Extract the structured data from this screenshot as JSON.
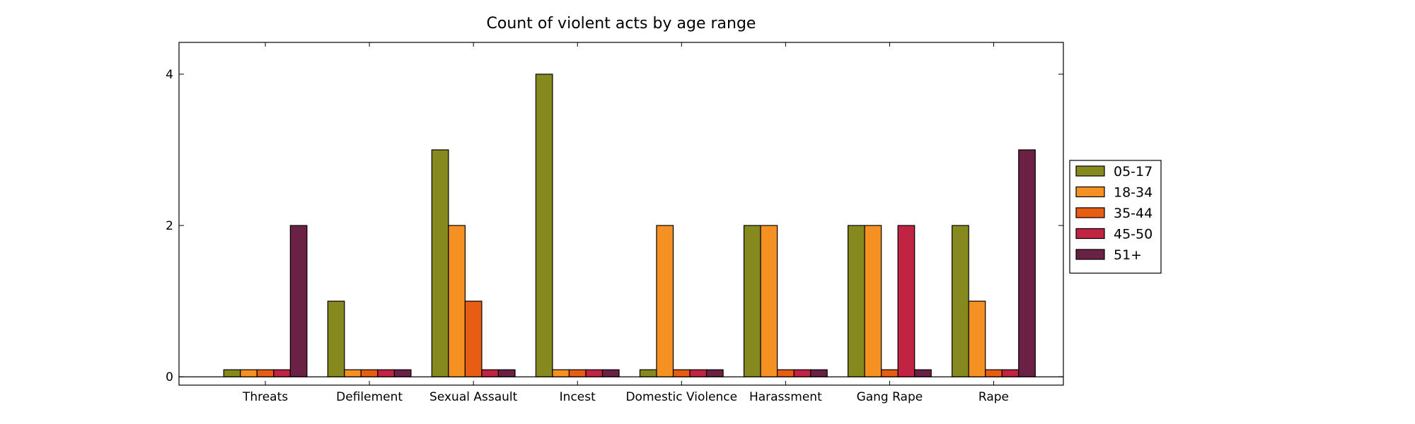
{
  "chart_data": {
    "type": "bar",
    "title": "Count of violent acts by age range",
    "xlabel": "",
    "ylabel": "",
    "categories": [
      "Threats",
      "Defilement",
      "Sexual Assault",
      "Incest",
      "Domestic Violence",
      "Harassment",
      "Gang Rape",
      "Rape"
    ],
    "series": [
      {
        "name": "05-17",
        "color": "#868a1e",
        "values": [
          0,
          1,
          3,
          4,
          0,
          2,
          2,
          2
        ]
      },
      {
        "name": "18-34",
        "color": "#f59122",
        "values": [
          0,
          0,
          2,
          0,
          2,
          2,
          2,
          1
        ]
      },
      {
        "name": "35-44",
        "color": "#e85d14",
        "values": [
          0,
          0,
          1,
          0,
          0,
          0,
          0,
          0
        ]
      },
      {
        "name": "45-50",
        "color": "#c02442",
        "values": [
          0,
          0,
          0,
          0,
          0,
          0,
          2,
          0
        ]
      },
      {
        "name": "51+",
        "color": "#6b2143",
        "values": [
          2,
          0,
          0,
          0,
          0,
          0,
          0,
          3
        ]
      }
    ],
    "ylim": [
      -0.11,
      4.42
    ],
    "yticks": [
      0,
      2,
      4
    ],
    "grid": false,
    "legend_position": "right"
  }
}
